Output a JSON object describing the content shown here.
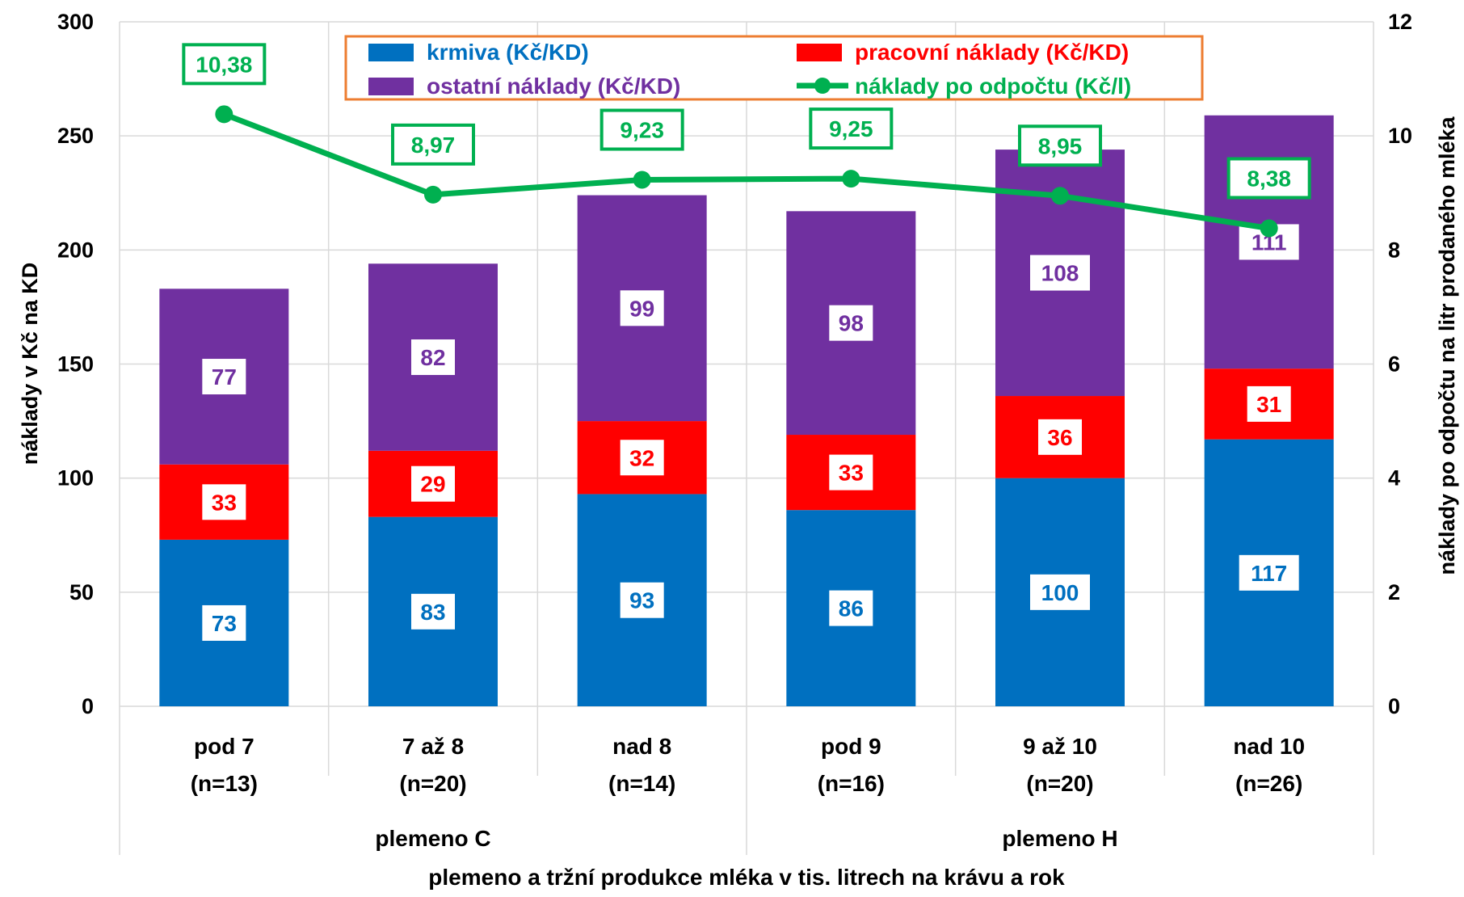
{
  "chart_data": {
    "type": "bar",
    "stacked": true,
    "categories": [
      "pod 7",
      "7 až 8",
      "nad 8",
      "pod 9",
      "9 až 10",
      "nad 10"
    ],
    "category_counts": [
      "(n=13)",
      "(n=20)",
      "(n=14)",
      "(n=16)",
      "(n=20)",
      "(n=26)"
    ],
    "groups": [
      {
        "label": "plemeno C",
        "categories": [
          "pod 7",
          "7 až 8",
          "nad 8"
        ]
      },
      {
        "label": "plemeno H",
        "categories": [
          "pod 9",
          "9 až 10",
          "nad 10"
        ]
      }
    ],
    "series": [
      {
        "name": "krmiva (Kč/KD)",
        "type": "bar",
        "axis": "left",
        "color": "#0070C0",
        "values": [
          73,
          83,
          93,
          86,
          100,
          117
        ]
      },
      {
        "name": "pracovní náklady (Kč/KD)",
        "type": "bar",
        "axis": "left",
        "color": "#FF0000",
        "values": [
          33,
          29,
          32,
          33,
          36,
          31
        ]
      },
      {
        "name": "ostatní náklady (Kč/KD)",
        "type": "bar",
        "axis": "left",
        "color": "#7030A0",
        "values": [
          77,
          82,
          99,
          98,
          108,
          111
        ]
      },
      {
        "name": "náklady po odpočtu (Kč/l)",
        "type": "line",
        "axis": "right",
        "color": "#00B050",
        "values": [
          10.38,
          8.97,
          9.23,
          9.25,
          8.95,
          8.38
        ],
        "labels": [
          "10,38",
          "8,97",
          "9,23",
          "9,25",
          "8,95",
          "8,38"
        ]
      }
    ],
    "ylabel": "náklady  v Kč na KD",
    "y2label": "náklady po odpočtu na litr prodaného mléka",
    "xlabel": "plemeno a tržní produkce mléka v tis. litrech na krávu a rok",
    "ylim": [
      0,
      300
    ],
    "y2lim": [
      0,
      12
    ],
    "yticks": [
      0,
      50,
      100,
      150,
      200,
      250,
      300
    ],
    "y2ticks": [
      0,
      2,
      4,
      6,
      8,
      10,
      12
    ],
    "grid": true,
    "legend_position": "top",
    "legend_border_color": "#ED7D31"
  }
}
